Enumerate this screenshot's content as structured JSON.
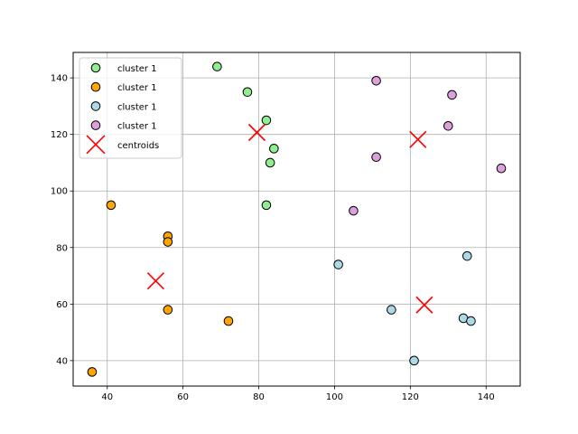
{
  "chart_data": {
    "type": "scatter",
    "title": "",
    "xlabel": "",
    "ylabel": "",
    "xlim": [
      31,
      149
    ],
    "ylim": [
      31,
      149
    ],
    "x_ticks": [
      40,
      60,
      80,
      100,
      120,
      140
    ],
    "y_ticks": [
      40,
      60,
      80,
      100,
      120,
      140
    ],
    "grid": true,
    "legend_position": "top-left",
    "series": [
      {
        "name": "cluster 1",
        "color": "#90ee90",
        "marker": "circle",
        "points": [
          [
            69,
            144
          ],
          [
            77,
            135
          ],
          [
            82,
            125
          ],
          [
            84,
            115
          ],
          [
            83,
            110
          ],
          [
            82,
            95
          ]
        ]
      },
      {
        "name": "cluster 1",
        "color": "#ffa500",
        "marker": "circle",
        "points": [
          [
            41,
            95
          ],
          [
            56,
            84
          ],
          [
            56,
            82
          ],
          [
            56,
            58
          ],
          [
            72,
            54
          ],
          [
            36,
            36
          ]
        ]
      },
      {
        "name": "cluster 1",
        "color": "#add8e6",
        "marker": "circle",
        "points": [
          [
            101,
            74
          ],
          [
            115,
            58
          ],
          [
            121,
            40
          ],
          [
            134,
            55
          ],
          [
            136,
            54
          ],
          [
            135,
            77
          ]
        ]
      },
      {
        "name": "cluster 1",
        "color": "#dda0dd",
        "marker": "circle",
        "points": [
          [
            111,
            139
          ],
          [
            131,
            134
          ],
          [
            130,
            123
          ],
          [
            111,
            112
          ],
          [
            144,
            108
          ],
          [
            105,
            93
          ]
        ]
      },
      {
        "name": "centroids",
        "color": "#ff0000",
        "marker": "x",
        "points": [
          [
            79.5,
            120.7
          ],
          [
            52.8,
            68.2
          ],
          [
            123.7,
            59.7
          ],
          [
            122,
            118.2
          ]
        ]
      }
    ]
  }
}
